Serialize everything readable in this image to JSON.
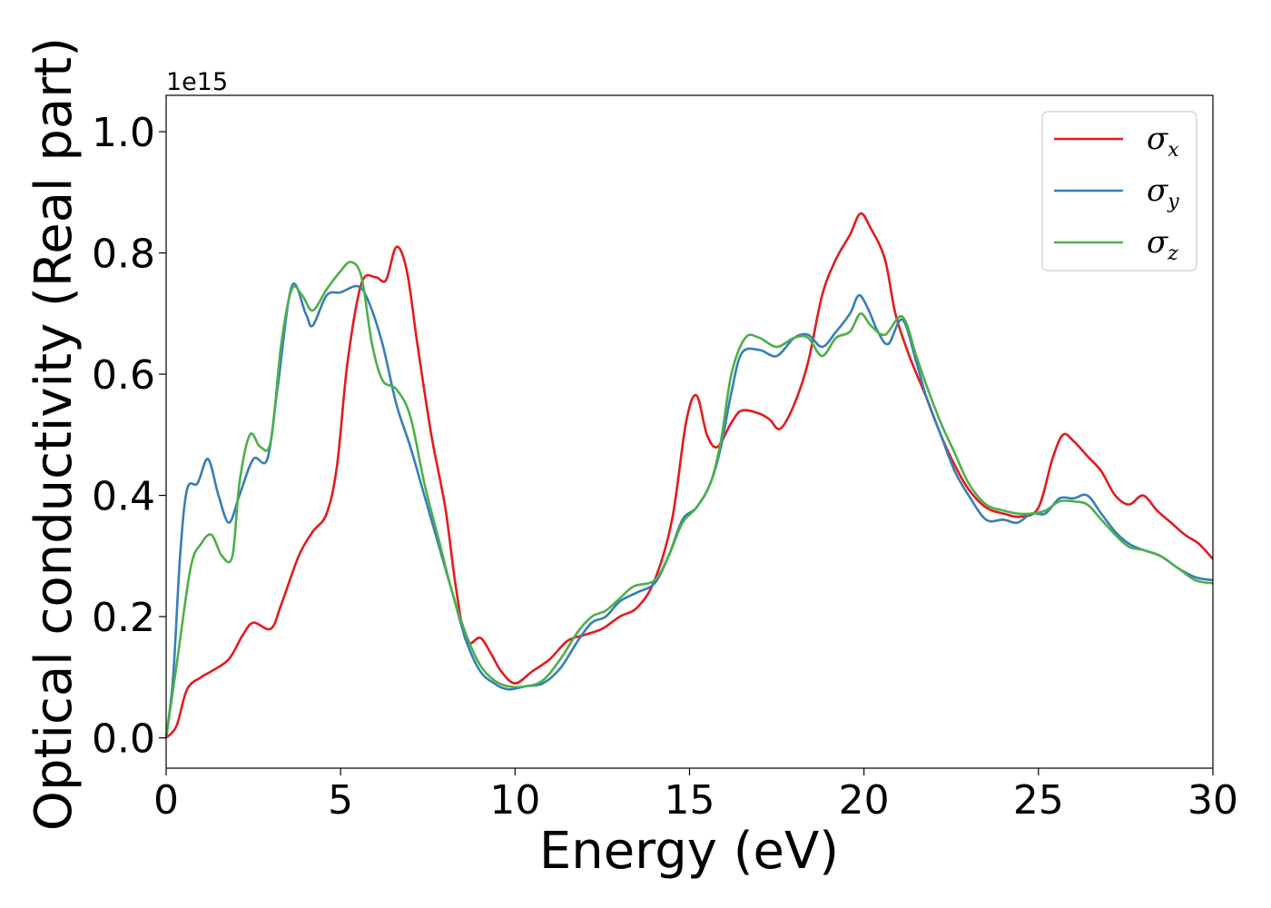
{
  "chart_data": {
    "type": "line",
    "xlabel": "Energy (eV)",
    "ylabel": "Optical conductivity (Real part)",
    "offset_text": "1e15",
    "xlim": [
      0,
      30
    ],
    "ylim": [
      -0.05,
      1.06
    ],
    "xticks": [
      0,
      5,
      10,
      15,
      20,
      25,
      30
    ],
    "xtick_labels": [
      "0",
      "5",
      "10",
      "15",
      "20",
      "25",
      "30"
    ],
    "yticks": [
      0.0,
      0.2,
      0.4,
      0.6,
      0.8,
      1.0
    ],
    "ytick_labels": [
      "0.0",
      "0.2",
      "0.4",
      "0.6",
      "0.8",
      "1.0"
    ],
    "grid": false,
    "legend_position": "top-right",
    "series": [
      {
        "name": "σ",
        "subscript": "x",
        "color": "#e41a1c",
        "points": [
          [
            0,
            0.0
          ],
          [
            0.3,
            0.02
          ],
          [
            0.6,
            0.08
          ],
          [
            1.0,
            0.1
          ],
          [
            1.3,
            0.11
          ],
          [
            1.8,
            0.13
          ],
          [
            2.2,
            0.17
          ],
          [
            2.5,
            0.19
          ],
          [
            3.0,
            0.18
          ],
          [
            3.3,
            0.22
          ],
          [
            3.8,
            0.3
          ],
          [
            4.2,
            0.34
          ],
          [
            4.6,
            0.37
          ],
          [
            4.9,
            0.45
          ],
          [
            5.2,
            0.62
          ],
          [
            5.6,
            0.75
          ],
          [
            6.0,
            0.76
          ],
          [
            6.3,
            0.755
          ],
          [
            6.6,
            0.81
          ],
          [
            6.9,
            0.77
          ],
          [
            7.2,
            0.65
          ],
          [
            7.6,
            0.5
          ],
          [
            8.0,
            0.38
          ],
          [
            8.3,
            0.25
          ],
          [
            8.6,
            0.16
          ],
          [
            9.0,
            0.165
          ],
          [
            9.3,
            0.14
          ],
          [
            9.6,
            0.11
          ],
          [
            10.0,
            0.09
          ],
          [
            10.5,
            0.11
          ],
          [
            11.0,
            0.13
          ],
          [
            11.5,
            0.16
          ],
          [
            12.0,
            0.17
          ],
          [
            12.5,
            0.18
          ],
          [
            13.0,
            0.2
          ],
          [
            13.5,
            0.215
          ],
          [
            14.0,
            0.26
          ],
          [
            14.5,
            0.36
          ],
          [
            14.9,
            0.52
          ],
          [
            15.2,
            0.565
          ],
          [
            15.5,
            0.5
          ],
          [
            15.8,
            0.48
          ],
          [
            16.2,
            0.52
          ],
          [
            16.5,
            0.54
          ],
          [
            17.0,
            0.535
          ],
          [
            17.3,
            0.525
          ],
          [
            17.6,
            0.51
          ],
          [
            18.0,
            0.55
          ],
          [
            18.4,
            0.62
          ],
          [
            18.8,
            0.73
          ],
          [
            19.2,
            0.79
          ],
          [
            19.6,
            0.83
          ],
          [
            19.9,
            0.865
          ],
          [
            20.2,
            0.84
          ],
          [
            20.6,
            0.79
          ],
          [
            20.9,
            0.7
          ],
          [
            21.3,
            0.63
          ],
          [
            21.8,
            0.56
          ],
          [
            22.2,
            0.5
          ],
          [
            22.6,
            0.45
          ],
          [
            23.0,
            0.41
          ],
          [
            23.5,
            0.38
          ],
          [
            24.0,
            0.37
          ],
          [
            24.5,
            0.365
          ],
          [
            25.0,
            0.38
          ],
          [
            25.4,
            0.46
          ],
          [
            25.7,
            0.5
          ],
          [
            26.0,
            0.49
          ],
          [
            26.4,
            0.465
          ],
          [
            26.8,
            0.44
          ],
          [
            27.2,
            0.4
          ],
          [
            27.6,
            0.385
          ],
          [
            28.0,
            0.4
          ],
          [
            28.4,
            0.375
          ],
          [
            28.8,
            0.355
          ],
          [
            29.2,
            0.335
          ],
          [
            29.6,
            0.32
          ],
          [
            30.0,
            0.295
          ]
        ]
      },
      {
        "name": "σ",
        "subscript": "y",
        "color": "#377eb8",
        "points": [
          [
            0,
            0.0
          ],
          [
            0.2,
            0.1
          ],
          [
            0.4,
            0.3
          ],
          [
            0.6,
            0.41
          ],
          [
            0.9,
            0.42
          ],
          [
            1.2,
            0.46
          ],
          [
            1.5,
            0.4
          ],
          [
            1.8,
            0.355
          ],
          [
            2.1,
            0.4
          ],
          [
            2.5,
            0.46
          ],
          [
            2.9,
            0.46
          ],
          [
            3.2,
            0.58
          ],
          [
            3.6,
            0.745
          ],
          [
            4.0,
            0.7
          ],
          [
            4.2,
            0.68
          ],
          [
            4.6,
            0.73
          ],
          [
            5.0,
            0.735
          ],
          [
            5.5,
            0.745
          ],
          [
            5.8,
            0.72
          ],
          [
            6.2,
            0.65
          ],
          [
            6.6,
            0.55
          ],
          [
            7.0,
            0.48
          ],
          [
            7.4,
            0.4
          ],
          [
            7.8,
            0.32
          ],
          [
            8.2,
            0.24
          ],
          [
            8.6,
            0.16
          ],
          [
            9.0,
            0.11
          ],
          [
            9.4,
            0.09
          ],
          [
            9.8,
            0.08
          ],
          [
            10.3,
            0.085
          ],
          [
            10.8,
            0.09
          ],
          [
            11.3,
            0.115
          ],
          [
            11.8,
            0.16
          ],
          [
            12.2,
            0.19
          ],
          [
            12.6,
            0.2
          ],
          [
            13.0,
            0.225
          ],
          [
            13.5,
            0.24
          ],
          [
            14.0,
            0.255
          ],
          [
            14.4,
            0.3
          ],
          [
            14.8,
            0.36
          ],
          [
            15.2,
            0.38
          ],
          [
            15.6,
            0.42
          ],
          [
            15.9,
            0.48
          ],
          [
            16.2,
            0.57
          ],
          [
            16.5,
            0.635
          ],
          [
            17.0,
            0.64
          ],
          [
            17.5,
            0.63
          ],
          [
            18.0,
            0.66
          ],
          [
            18.4,
            0.665
          ],
          [
            18.8,
            0.645
          ],
          [
            19.2,
            0.67
          ],
          [
            19.6,
            0.7
          ],
          [
            19.85,
            0.73
          ],
          [
            20.1,
            0.71
          ],
          [
            20.4,
            0.67
          ],
          [
            20.7,
            0.65
          ],
          [
            21.1,
            0.69
          ],
          [
            21.5,
            0.62
          ],
          [
            21.8,
            0.56
          ],
          [
            22.2,
            0.5
          ],
          [
            22.6,
            0.44
          ],
          [
            23.0,
            0.4
          ],
          [
            23.5,
            0.36
          ],
          [
            24.0,
            0.36
          ],
          [
            24.4,
            0.355
          ],
          [
            24.8,
            0.37
          ],
          [
            25.2,
            0.37
          ],
          [
            25.6,
            0.395
          ],
          [
            26.0,
            0.395
          ],
          [
            26.4,
            0.4
          ],
          [
            26.8,
            0.37
          ],
          [
            27.2,
            0.34
          ],
          [
            27.6,
            0.32
          ],
          [
            28.0,
            0.31
          ],
          [
            28.5,
            0.3
          ],
          [
            29.0,
            0.28
          ],
          [
            29.5,
            0.265
          ],
          [
            30.0,
            0.26
          ]
        ]
      },
      {
        "name": "σ",
        "subscript": "z",
        "color": "#4daf4a",
        "points": [
          [
            0,
            0.0
          ],
          [
            0.3,
            0.12
          ],
          [
            0.7,
            0.28
          ],
          [
            1.0,
            0.32
          ],
          [
            1.3,
            0.335
          ],
          [
            1.6,
            0.3
          ],
          [
            1.9,
            0.3
          ],
          [
            2.1,
            0.42
          ],
          [
            2.4,
            0.5
          ],
          [
            2.7,
            0.48
          ],
          [
            3.0,
            0.49
          ],
          [
            3.3,
            0.65
          ],
          [
            3.6,
            0.74
          ],
          [
            3.9,
            0.73
          ],
          [
            4.2,
            0.705
          ],
          [
            4.6,
            0.74
          ],
          [
            5.0,
            0.77
          ],
          [
            5.3,
            0.785
          ],
          [
            5.6,
            0.76
          ],
          [
            5.9,
            0.65
          ],
          [
            6.2,
            0.59
          ],
          [
            6.6,
            0.575
          ],
          [
            7.0,
            0.53
          ],
          [
            7.4,
            0.42
          ],
          [
            7.8,
            0.33
          ],
          [
            8.2,
            0.24
          ],
          [
            8.6,
            0.17
          ],
          [
            9.0,
            0.12
          ],
          [
            9.4,
            0.095
          ],
          [
            9.8,
            0.085
          ],
          [
            10.3,
            0.085
          ],
          [
            10.8,
            0.095
          ],
          [
            11.3,
            0.13
          ],
          [
            11.8,
            0.175
          ],
          [
            12.2,
            0.2
          ],
          [
            12.6,
            0.21
          ],
          [
            13.0,
            0.23
          ],
          [
            13.4,
            0.25
          ],
          [
            14.0,
            0.26
          ],
          [
            14.4,
            0.3
          ],
          [
            14.8,
            0.355
          ],
          [
            15.2,
            0.38
          ],
          [
            15.6,
            0.42
          ],
          [
            15.9,
            0.49
          ],
          [
            16.2,
            0.6
          ],
          [
            16.6,
            0.66
          ],
          [
            17.0,
            0.66
          ],
          [
            17.5,
            0.645
          ],
          [
            18.0,
            0.66
          ],
          [
            18.4,
            0.66
          ],
          [
            18.8,
            0.63
          ],
          [
            19.2,
            0.66
          ],
          [
            19.6,
            0.67
          ],
          [
            19.9,
            0.7
          ],
          [
            20.2,
            0.68
          ],
          [
            20.6,
            0.665
          ],
          [
            21.1,
            0.695
          ],
          [
            21.5,
            0.63
          ],
          [
            21.8,
            0.58
          ],
          [
            22.2,
            0.52
          ],
          [
            22.6,
            0.47
          ],
          [
            23.0,
            0.42
          ],
          [
            23.5,
            0.385
          ],
          [
            24.0,
            0.375
          ],
          [
            24.4,
            0.37
          ],
          [
            24.8,
            0.37
          ],
          [
            25.2,
            0.375
          ],
          [
            25.6,
            0.39
          ],
          [
            26.0,
            0.39
          ],
          [
            26.4,
            0.385
          ],
          [
            26.8,
            0.36
          ],
          [
            27.2,
            0.335
          ],
          [
            27.6,
            0.315
          ],
          [
            28.0,
            0.31
          ],
          [
            28.5,
            0.3
          ],
          [
            29.0,
            0.28
          ],
          [
            29.5,
            0.26
          ],
          [
            30.0,
            0.255
          ]
        ]
      }
    ]
  }
}
